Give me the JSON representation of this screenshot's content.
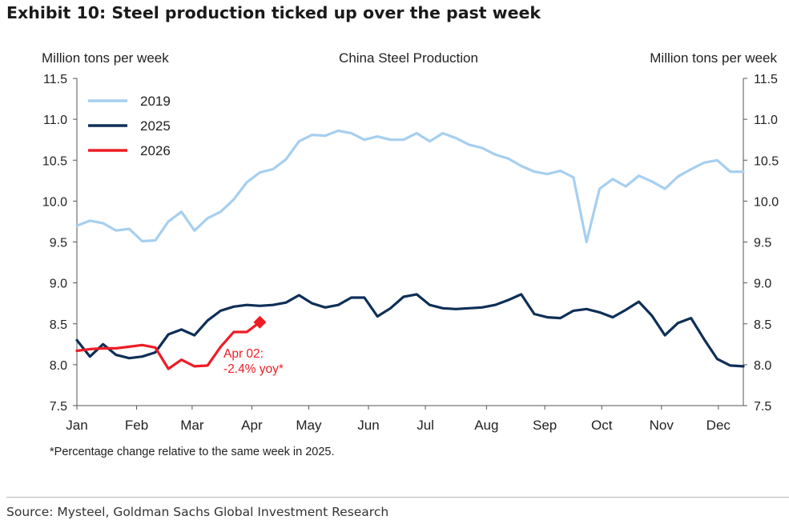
{
  "exhibit": {
    "title": "Exhibit 10: Steel production ticked up over the past week",
    "footnote": "*Percentage change relative to the same week in 2025.",
    "source": "Source: Mysteel, Goldman Sachs Global Investment Research"
  },
  "chart_data": {
    "type": "line",
    "title": "China Steel Production",
    "ylabel_left": "Million tons per week",
    "ylabel_right": "Million tons per week",
    "ylim": [
      7.5,
      11.5
    ],
    "y_ticks": [
      "7.5",
      "8.0",
      "8.5",
      "9.0",
      "9.5",
      "10.0",
      "10.5",
      "11.0",
      "11.5"
    ],
    "x_range": [
      0,
      48
    ],
    "x_ticks": [
      {
        "label": "Jan",
        "x": 0
      },
      {
        "label": "Feb",
        "x": 4.3
      },
      {
        "label": "Mar",
        "x": 8.3
      },
      {
        "label": "Apr",
        "x": 12.6
      },
      {
        "label": "May",
        "x": 16.7
      },
      {
        "label": "Jun",
        "x": 21
      },
      {
        "label": "Jul",
        "x": 25.1
      },
      {
        "label": "Aug",
        "x": 29.5
      },
      {
        "label": "Sep",
        "x": 33.7
      },
      {
        "label": "Oct",
        "x": 37.8
      },
      {
        "label": "Nov",
        "x": 42.1
      },
      {
        "label": "Dec",
        "x": 46.2
      }
    ],
    "legend_position": "top-left",
    "series": [
      {
        "name": "2019",
        "color": "#a6cff0",
        "values": [
          9.7,
          9.76,
          9.73,
          9.64,
          9.66,
          9.51,
          9.52,
          9.75,
          9.87,
          9.64,
          9.79,
          9.87,
          10.02,
          10.23,
          10.35,
          10.39,
          10.51,
          10.73,
          10.81,
          10.8,
          10.86,
          10.83,
          10.75,
          10.79,
          10.75,
          10.75,
          10.83,
          10.73,
          10.83,
          10.77,
          10.69,
          10.65,
          10.57,
          10.52,
          10.43,
          10.36,
          10.33,
          10.37,
          10.29,
          9.5,
          10.15,
          10.27,
          10.18,
          10.31,
          10.24,
          10.15,
          10.3,
          10.39,
          10.47,
          10.5,
          10.36,
          10.36
        ]
      },
      {
        "name": "2025",
        "color": "#0e2f57",
        "values": [
          8.3,
          8.1,
          8.25,
          8.12,
          8.08,
          8.1,
          8.15,
          8.37,
          8.43,
          8.36,
          8.54,
          8.66,
          8.71,
          8.73,
          8.72,
          8.73,
          8.76,
          8.85,
          8.75,
          8.7,
          8.73,
          8.82,
          8.82,
          8.59,
          8.69,
          8.83,
          8.86,
          8.73,
          8.69,
          8.68,
          8.69,
          8.7,
          8.73,
          8.79,
          8.86,
          8.62,
          8.58,
          8.57,
          8.66,
          8.68,
          8.64,
          8.58,
          8.67,
          8.77,
          8.6,
          8.36,
          8.51,
          8.57,
          8.31,
          8.07,
          7.99,
          7.98
        ]
      },
      {
        "name": "2026",
        "color": "#ee1c25",
        "values": [
          8.17,
          8.19,
          8.2,
          8.2,
          8.22,
          8.24,
          8.21,
          7.95,
          8.06,
          7.98,
          7.99,
          8.22,
          8.4,
          8.4,
          8.52
        ]
      }
    ],
    "annotation": {
      "marker_label": "Apr 02",
      "marker_value": 8.52,
      "text_line1": "Apr 02:",
      "text_line2": "-2.4% yoy*",
      "color": "#ee1c25"
    }
  }
}
